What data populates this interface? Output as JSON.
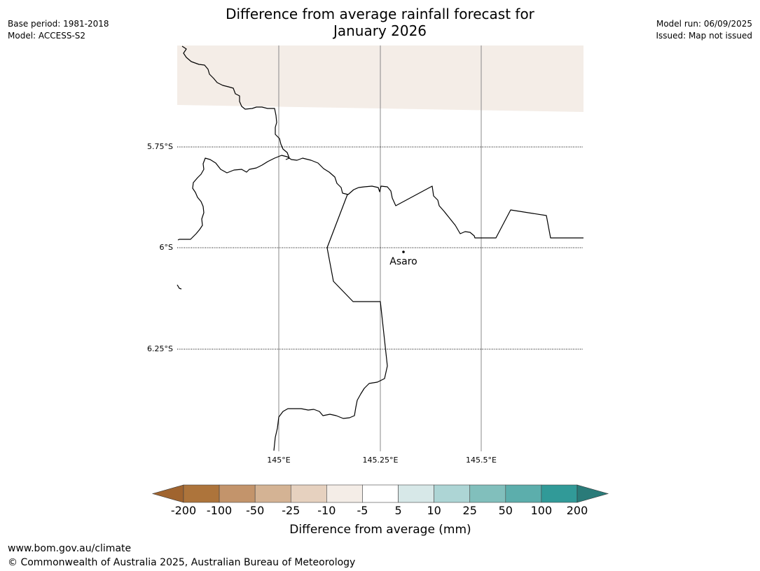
{
  "header": {
    "title_line1": "Difference from average rainfall forecast for",
    "title_line2": "January 2026",
    "base_period": "Base period: 1981-2018",
    "model": "Model: ACCESS-S2",
    "model_run": "Model run: 06/09/2025",
    "issued": "Issued: Map not issued"
  },
  "map": {
    "latitude_labels": [
      "5.75°S",
      "6°S",
      "6.25°S"
    ],
    "longitude_labels": [
      "145°E",
      "145.25°E",
      "145.5°E"
    ],
    "place": {
      "name": "Asaro"
    },
    "forecast_region_category": "-10 to -5",
    "forecast_region_color": "#f4ede7"
  },
  "colorbar": {
    "title": "Difference from average (mm)",
    "tick_labels": [
      "-200",
      "-100",
      "-50",
      "-25",
      "-10",
      "-5",
      "5",
      "10",
      "25",
      "50",
      "100",
      "200"
    ],
    "colors": [
      "#a0642f",
      "#ad743b",
      "#c3946b",
      "#d4b394",
      "#e6d1bf",
      "#f4ede7",
      "#ffffff",
      "#d7e8e8",
      "#add5d5",
      "#81bfbc",
      "#5caeac",
      "#319a98",
      "#2a7b79"
    ]
  },
  "footer": {
    "url": "www.bom.gov.au/climate",
    "copyright": "© Commonwealth of Australia 2025, Australian Bureau of Meteorology"
  }
}
